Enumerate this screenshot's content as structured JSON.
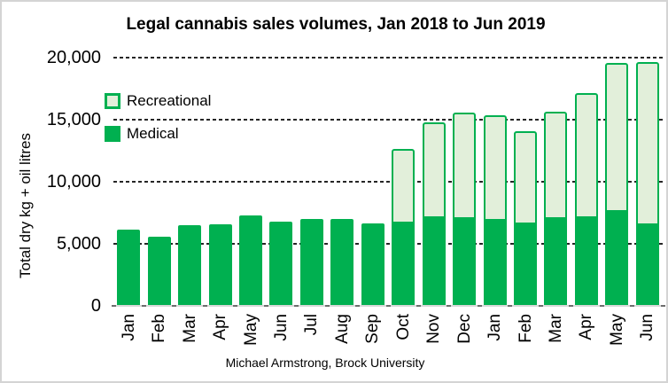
{
  "title": "Legal cannabis sales volumes, Jan 2018 to Jun 2019",
  "caption": "Michael Armstrong, Brock University",
  "y_axis": {
    "title": "Total dry kg + oil litres",
    "ticks": [
      {
        "value": 20000,
        "label": "20,000"
      },
      {
        "value": 15000,
        "label": "15,000"
      },
      {
        "value": 10000,
        "label": "10,000"
      },
      {
        "value": 5000,
        "label": "5,000"
      },
      {
        "value": 0,
        "label": "0"
      }
    ]
  },
  "legend": {
    "items": [
      {
        "label": "Recreational",
        "swatch": "light-green-outlined"
      },
      {
        "label": "Medical",
        "swatch": "solid-green"
      }
    ]
  },
  "colors": {
    "medical_green": "#00B050",
    "recreational_fill": "#E2EFDA",
    "recreational_border": "#00B050",
    "gridline": "#262626",
    "baseline": "#D9D9D9",
    "axis_tick": "#6E6E6E",
    "frame_border": "#D4D4D4"
  },
  "chart_data": {
    "type": "bar",
    "stacked": true,
    "title": "Legal cannabis sales volumes, Jan 2018 to Jun 2019",
    "xlabel": "",
    "ylabel": "Total dry kg + oil litres",
    "ylim": [
      0,
      20000
    ],
    "y_tick_interval": 5000,
    "grid": "horizontal-dashed",
    "legend_position": "inside-top-left",
    "categories": [
      "Jan",
      "Feb",
      "Mar",
      "Apr",
      "May",
      "Jun",
      "Jul",
      "Aug",
      "Sep",
      "Oct",
      "Nov",
      "Dec",
      "Jan",
      "Feb",
      "Mar",
      "Apr",
      "May",
      "Jun"
    ],
    "series": [
      {
        "name": "Medical",
        "values": [
          6100,
          5500,
          6400,
          6500,
          7200,
          6700,
          6900,
          6900,
          6600,
          6600,
          7000,
          6900,
          6800,
          6500,
          6900,
          7000,
          7500,
          6400
        ]
      },
      {
        "name": "Recreational",
        "values": [
          0,
          0,
          0,
          0,
          0,
          0,
          0,
          0,
          0,
          6000,
          7700,
          8600,
          8500,
          7500,
          8700,
          10100,
          12000,
          13200
        ]
      }
    ],
    "totals": [
      6100,
      5500,
      6400,
      6500,
      7200,
      6700,
      6900,
      6900,
      6600,
      12600,
      14700,
      15500,
      15300,
      14000,
      15600,
      17100,
      19500,
      19600
    ]
  }
}
